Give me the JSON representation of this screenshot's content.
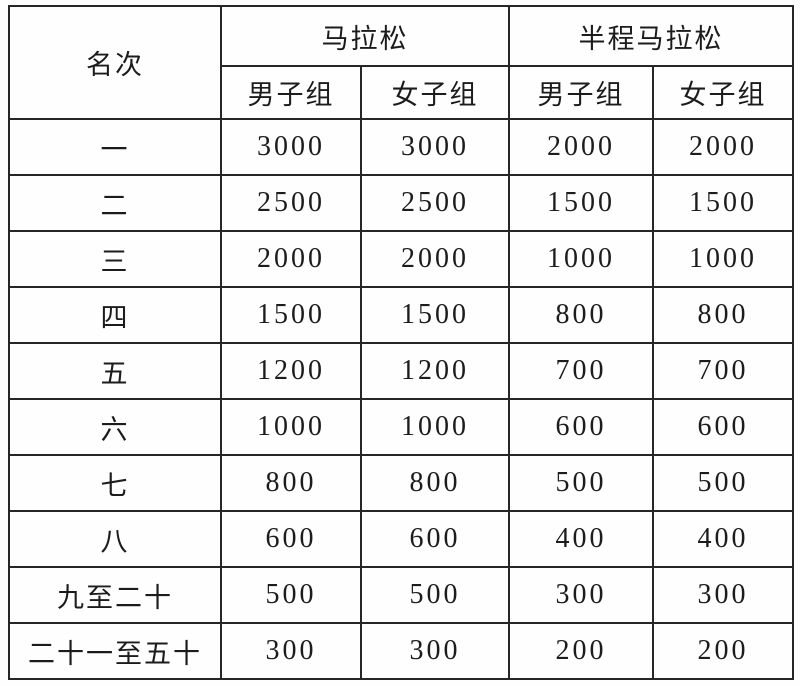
{
  "page": {
    "background": "#fefefe",
    "border_color": "#262626",
    "text_color": "#1c1c1c"
  },
  "table": {
    "rank_header": "名次",
    "groups": [
      {
        "label": "马拉松",
        "sub": [
          "男子组",
          "女子组"
        ]
      },
      {
        "label": "半程马拉松",
        "sub": [
          "男子组",
          "女子组"
        ]
      }
    ],
    "rows": [
      {
        "rank": "一",
        "values": [
          "3000",
          "3000",
          "2000",
          "2000"
        ]
      },
      {
        "rank": "二",
        "values": [
          "2500",
          "2500",
          "1500",
          "1500"
        ]
      },
      {
        "rank": "三",
        "values": [
          "2000",
          "2000",
          "1000",
          "1000"
        ]
      },
      {
        "rank": "四",
        "values": [
          "1500",
          "1500",
          "800",
          "800"
        ]
      },
      {
        "rank": "五",
        "values": [
          "1200",
          "1200",
          "700",
          "700"
        ]
      },
      {
        "rank": "六",
        "values": [
          "1000",
          "1000",
          "600",
          "600"
        ]
      },
      {
        "rank": "七",
        "values": [
          "800",
          "800",
          "500",
          "500"
        ]
      },
      {
        "rank": "八",
        "values": [
          "600",
          "600",
          "400",
          "400"
        ]
      },
      {
        "rank": "九至二十",
        "values": [
          "500",
          "500",
          "300",
          "300"
        ]
      },
      {
        "rank": "二十一至五十",
        "values": [
          "300",
          "300",
          "200",
          "200"
        ]
      }
    ]
  }
}
